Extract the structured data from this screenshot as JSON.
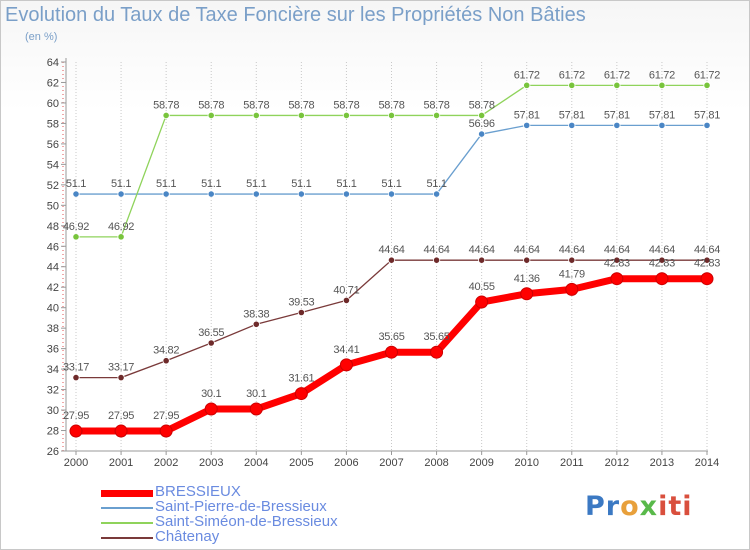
{
  "title": "Evolution du Taux de Taxe Foncière sur les Propriétés Non Bâties",
  "subtitle": "(en %)",
  "logo": "Proxiti",
  "chart_data": {
    "type": "line",
    "title": "Evolution du Taux de Taxe Foncière sur les Propriétés Non Bâties",
    "ylabel": "(en %)",
    "xlabel": "",
    "ylim": [
      26,
      64
    ],
    "ystep": 2,
    "grid": "vertical dotted",
    "legend_position": "bottom-left",
    "x": [
      "2000",
      "2001",
      "2002",
      "2003",
      "2004",
      "2005",
      "2006",
      "2007",
      "2008",
      "2009",
      "2010",
      "2011",
      "2012",
      "2013",
      "2014"
    ],
    "series": [
      {
        "name": "BRESSIEUX",
        "color": "#ff0000",
        "marker_color": "#ff0000",
        "values": [
          27.95,
          27.95,
          27.95,
          30.1,
          30.1,
          31.61,
          34.41,
          35.65,
          35.65,
          40.55,
          41.36,
          41.79,
          42.83,
          42.83,
          42.83
        ]
      },
      {
        "name": "Saint-Pierre-de-Bressieux",
        "color": "#6a9fcf",
        "marker_color": "#4a86c5",
        "values": [
          51.1,
          51.1,
          51.1,
          51.1,
          51.1,
          51.1,
          51.1,
          51.1,
          51.1,
          56.96,
          57.81,
          57.81,
          57.81,
          57.81,
          57.81
        ]
      },
      {
        "name": "Saint-Siméon-de-Bressieux",
        "color": "#8fd35b",
        "marker_color": "#78c43c",
        "values": [
          46.92,
          46.92,
          58.78,
          58.78,
          58.78,
          58.78,
          58.78,
          58.78,
          58.78,
          58.78,
          61.72,
          61.72,
          61.72,
          61.72,
          61.72
        ]
      },
      {
        "name": "Châtenay",
        "color": "#7a3a3a",
        "marker_color": "#6e2a2a",
        "values": [
          33.17,
          33.17,
          34.82,
          36.55,
          38.38,
          39.53,
          40.71,
          44.64,
          44.64,
          44.64,
          44.64,
          44.64,
          44.64,
          44.64,
          44.64
        ]
      }
    ]
  }
}
